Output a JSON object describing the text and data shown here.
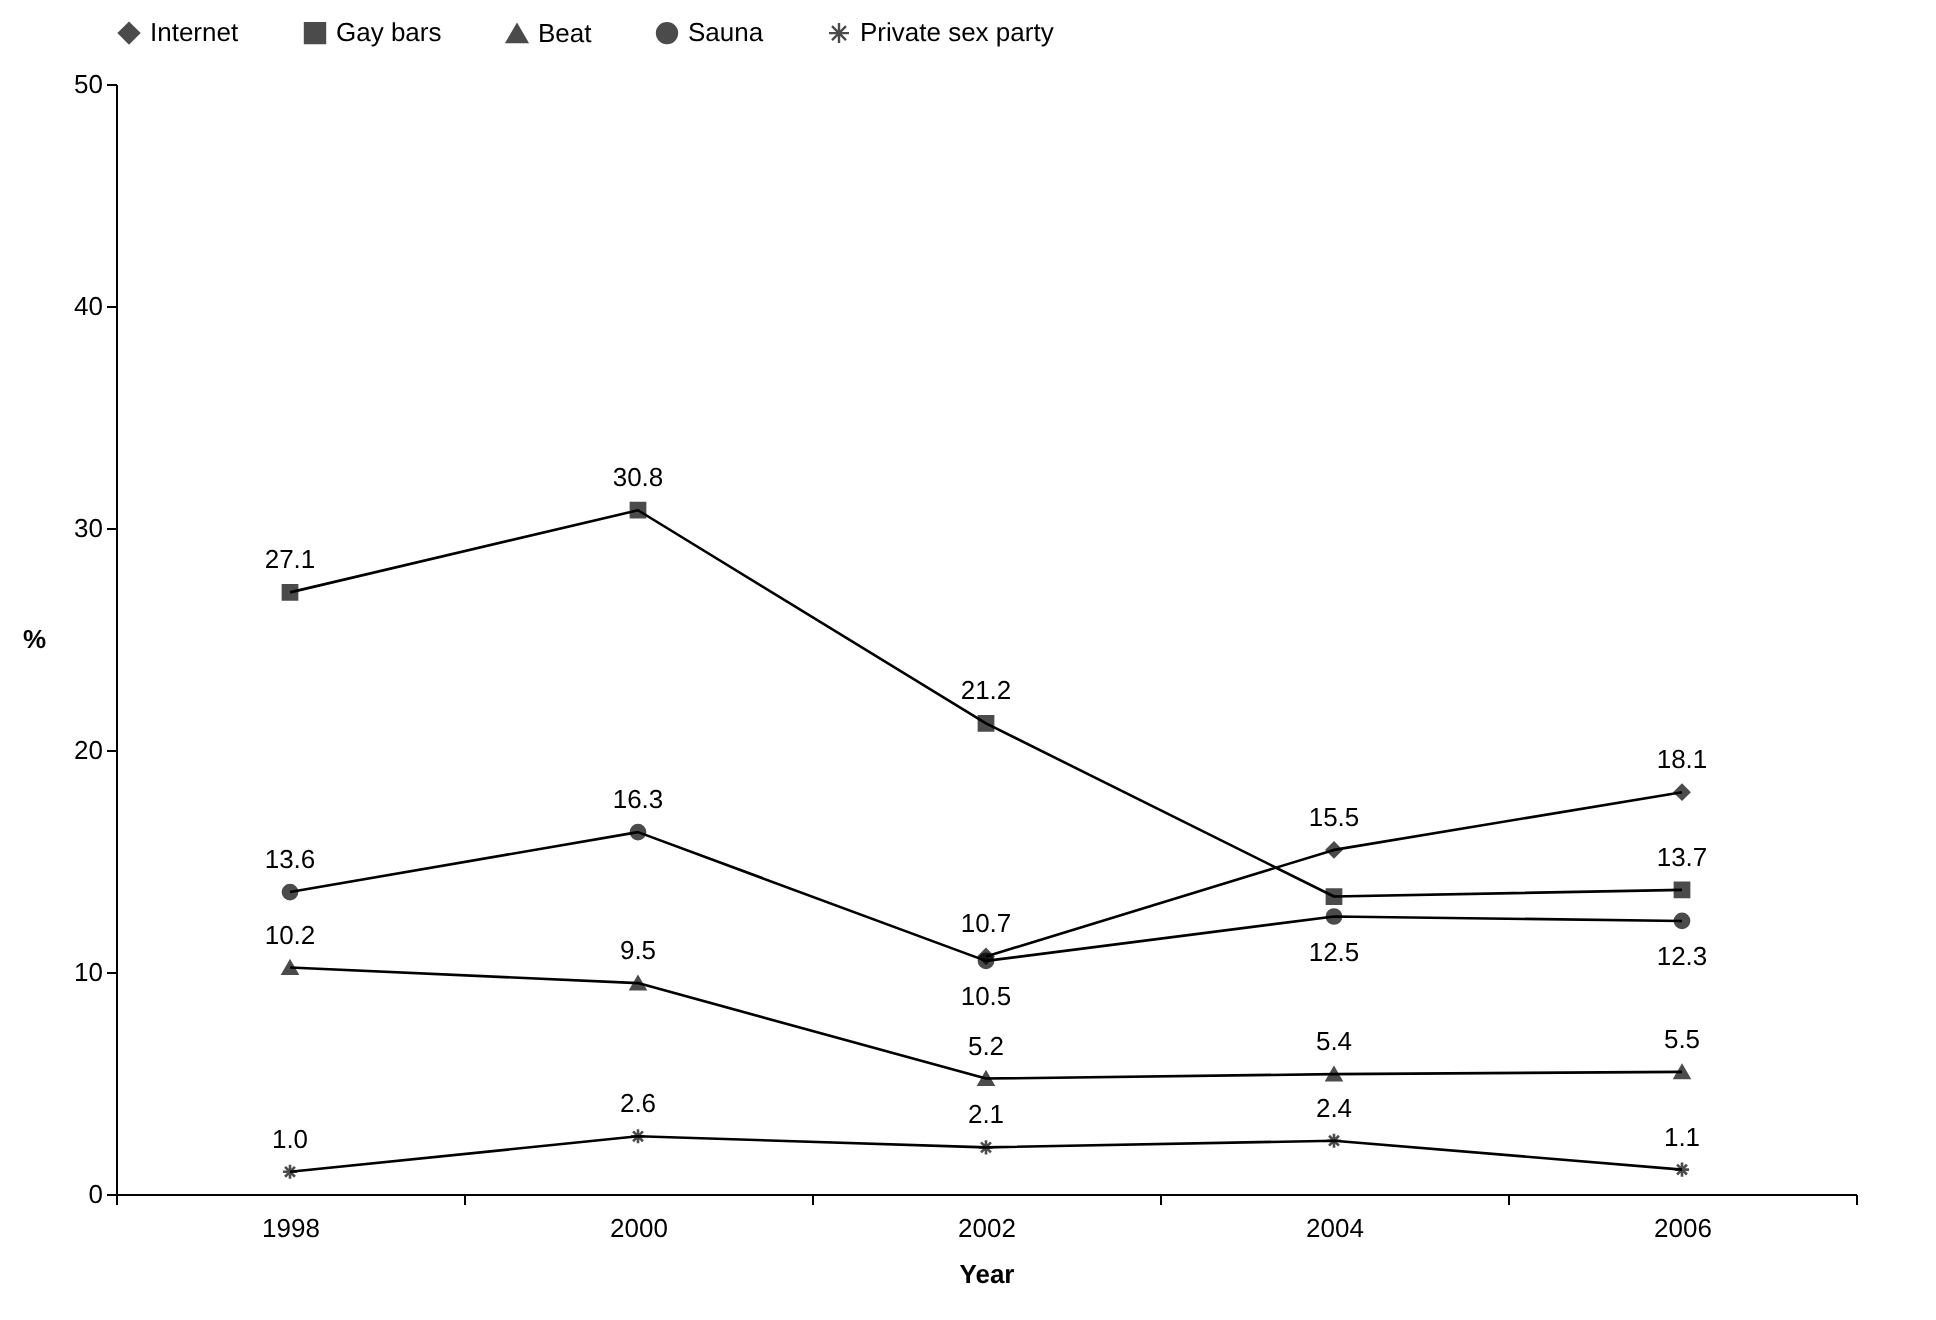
{
  "chart_data": {
    "type": "line",
    "xlabel": "Year",
    "ylabel": "%",
    "categories": [
      "1998",
      "2000",
      "2002",
      "2004",
      "2006"
    ],
    "ylim": [
      0,
      50
    ],
    "yticks": [
      0,
      10,
      20,
      30,
      40,
      50
    ],
    "grid": false,
    "legend": "top",
    "series": [
      {
        "name": "Internet",
        "color": "#000000",
        "marker": "diamond",
        "values": [
          null,
          null,
          10.7,
          15.5,
          18.1
        ],
        "value_labels": [
          null,
          null,
          "10.7",
          "15.5",
          "18.1"
        ]
      },
      {
        "name": "Gay bars",
        "color": "#000000",
        "marker": "square",
        "values": [
          27.1,
          30.8,
          21.2,
          13.4,
          13.7
        ],
        "value_labels": [
          "27.1",
          "30.8",
          "21.2",
          null,
          "13.7"
        ]
      },
      {
        "name": "Beat",
        "color": "#000000",
        "marker": "triangle",
        "values": [
          10.2,
          9.5,
          5.2,
          5.4,
          5.5
        ],
        "value_labels": [
          "10.2",
          "9.5",
          "5.2",
          "5.4",
          "5.5"
        ]
      },
      {
        "name": "Sauna",
        "color": "#000000",
        "marker": "circle",
        "values": [
          13.6,
          16.3,
          10.5,
          12.5,
          12.3
        ],
        "value_labels": [
          "13.6",
          "16.3",
          "10.5",
          "12.5",
          "12.3"
        ]
      },
      {
        "name": "Private sex party",
        "color": "#000000",
        "marker": "cross",
        "values": [
          1.0,
          2.6,
          2.1,
          2.4,
          1.1
        ],
        "value_labels": [
          "1.0",
          "2.6",
          "2.1",
          "2.4",
          "1.1"
        ]
      }
    ]
  }
}
